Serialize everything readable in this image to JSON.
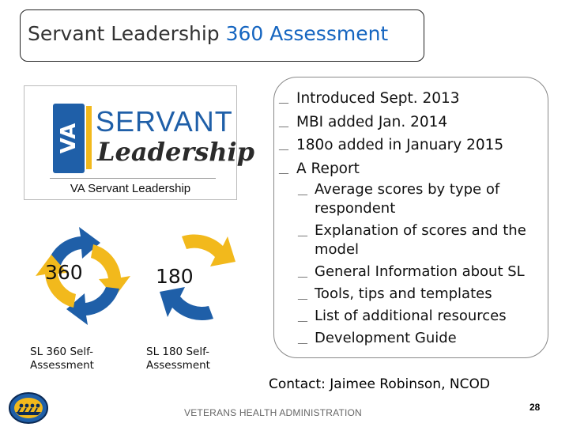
{
  "title": {
    "main": "Servant Leadership",
    "accent": "360 Assessment"
  },
  "logo": {
    "va_mark": "VA",
    "word_top": "SERVANT",
    "word_bottom": "Leadership",
    "caption": "VA Servant Leadership",
    "colors": {
      "blue": "#1f5fa8",
      "gold": "#f2b91c"
    }
  },
  "cycles": [
    {
      "number": "360",
      "label": "SL 360 Self-Assessment",
      "icon": "circular-arrows-icon"
    },
    {
      "number": "180",
      "label": "SL 180 Self-Assessment",
      "icon": "half-circular-arrows-icon"
    }
  ],
  "bullets": {
    "items": [
      "Introduced Sept. 2013",
      "MBI added Jan. 2014",
      "180o added in January 2015",
      "A Report"
    ],
    "sub_items": [
      "Average scores by type of respondent",
      "Explanation of scores and the model",
      "General Information about SL",
      "Tools, tips and templates",
      "List of additional resources",
      "Development Guide"
    ],
    "bullet_glyph": "__"
  },
  "contact": "Contact:  Jaimee Robinson, NCOD",
  "footer": {
    "org": "VETERANS HEALTH ADMINISTRATION",
    "page": "28"
  }
}
